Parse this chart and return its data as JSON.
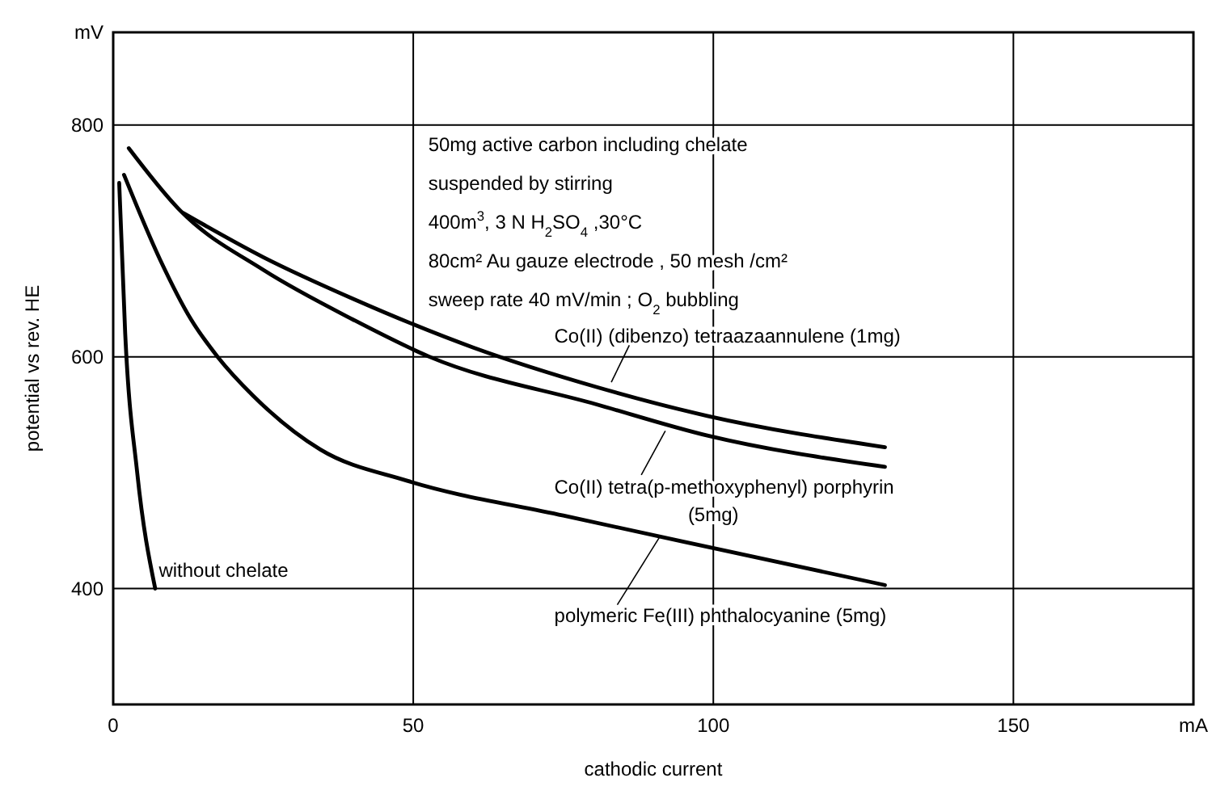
{
  "chart_data": {
    "type": "line",
    "xlabel": "cathodic current",
    "ylabel": "potential vs rev. HE",
    "xlim": [
      0,
      180
    ],
    "ylim": [
      300,
      880
    ],
    "xticks": [
      0,
      50,
      100,
      150,
      {
        "value": 180,
        "label": "mA"
      }
    ],
    "yticks": [
      400,
      600,
      800,
      {
        "value": 880,
        "label": "mV"
      }
    ],
    "grid": true,
    "series": [
      {
        "name": "without chelate",
        "color": "#000000",
        "x": [
          1,
          2,
          4,
          7
        ],
        "values": [
          750,
          620,
          500,
          400
        ]
      },
      {
        "name": "polymeric Fe(III) phthalocyanine (5mg)",
        "color": "#000000",
        "x": [
          1.8,
          7.8,
          13,
          17.4,
          23.4,
          34.5,
          49,
          75,
          99,
          128.6
        ],
        "values": [
          757,
          684,
          632,
          600,
          566,
          520,
          493,
          463,
          436,
          403
        ]
      },
      {
        "name": "Co(II) tetra(p-methoxyphenyl) porphyrin (5mg)",
        "color": "#000000",
        "x": [
          2.6,
          11.2,
          25,
          40,
          52.7,
          80.5,
          99,
          128.6
        ],
        "values": [
          780,
          726,
          675,
          632,
          600,
          559,
          532,
          505
        ]
      },
      {
        "name": "Co(II) (dibenzo) tetraazaannulene (1mg)",
        "color": "#000000",
        "x": [
          11.7,
          25,
          40,
          60,
          80.5,
          99,
          128.6
        ],
        "values": [
          724,
          686,
          650,
          608,
          574,
          549,
          522
        ]
      }
    ],
    "annotations": [
      "50mg active carbon including chelate",
      "suspended by stirring",
      "400m$^{3}$, 3 N H$_{2}$SO$_{4}$ ,30°C",
      "80cm² Au gauze electrode , 50 mesh /cm²",
      "sweep rate 40 mV/min ; O$_{2}$ bubbling"
    ]
  }
}
